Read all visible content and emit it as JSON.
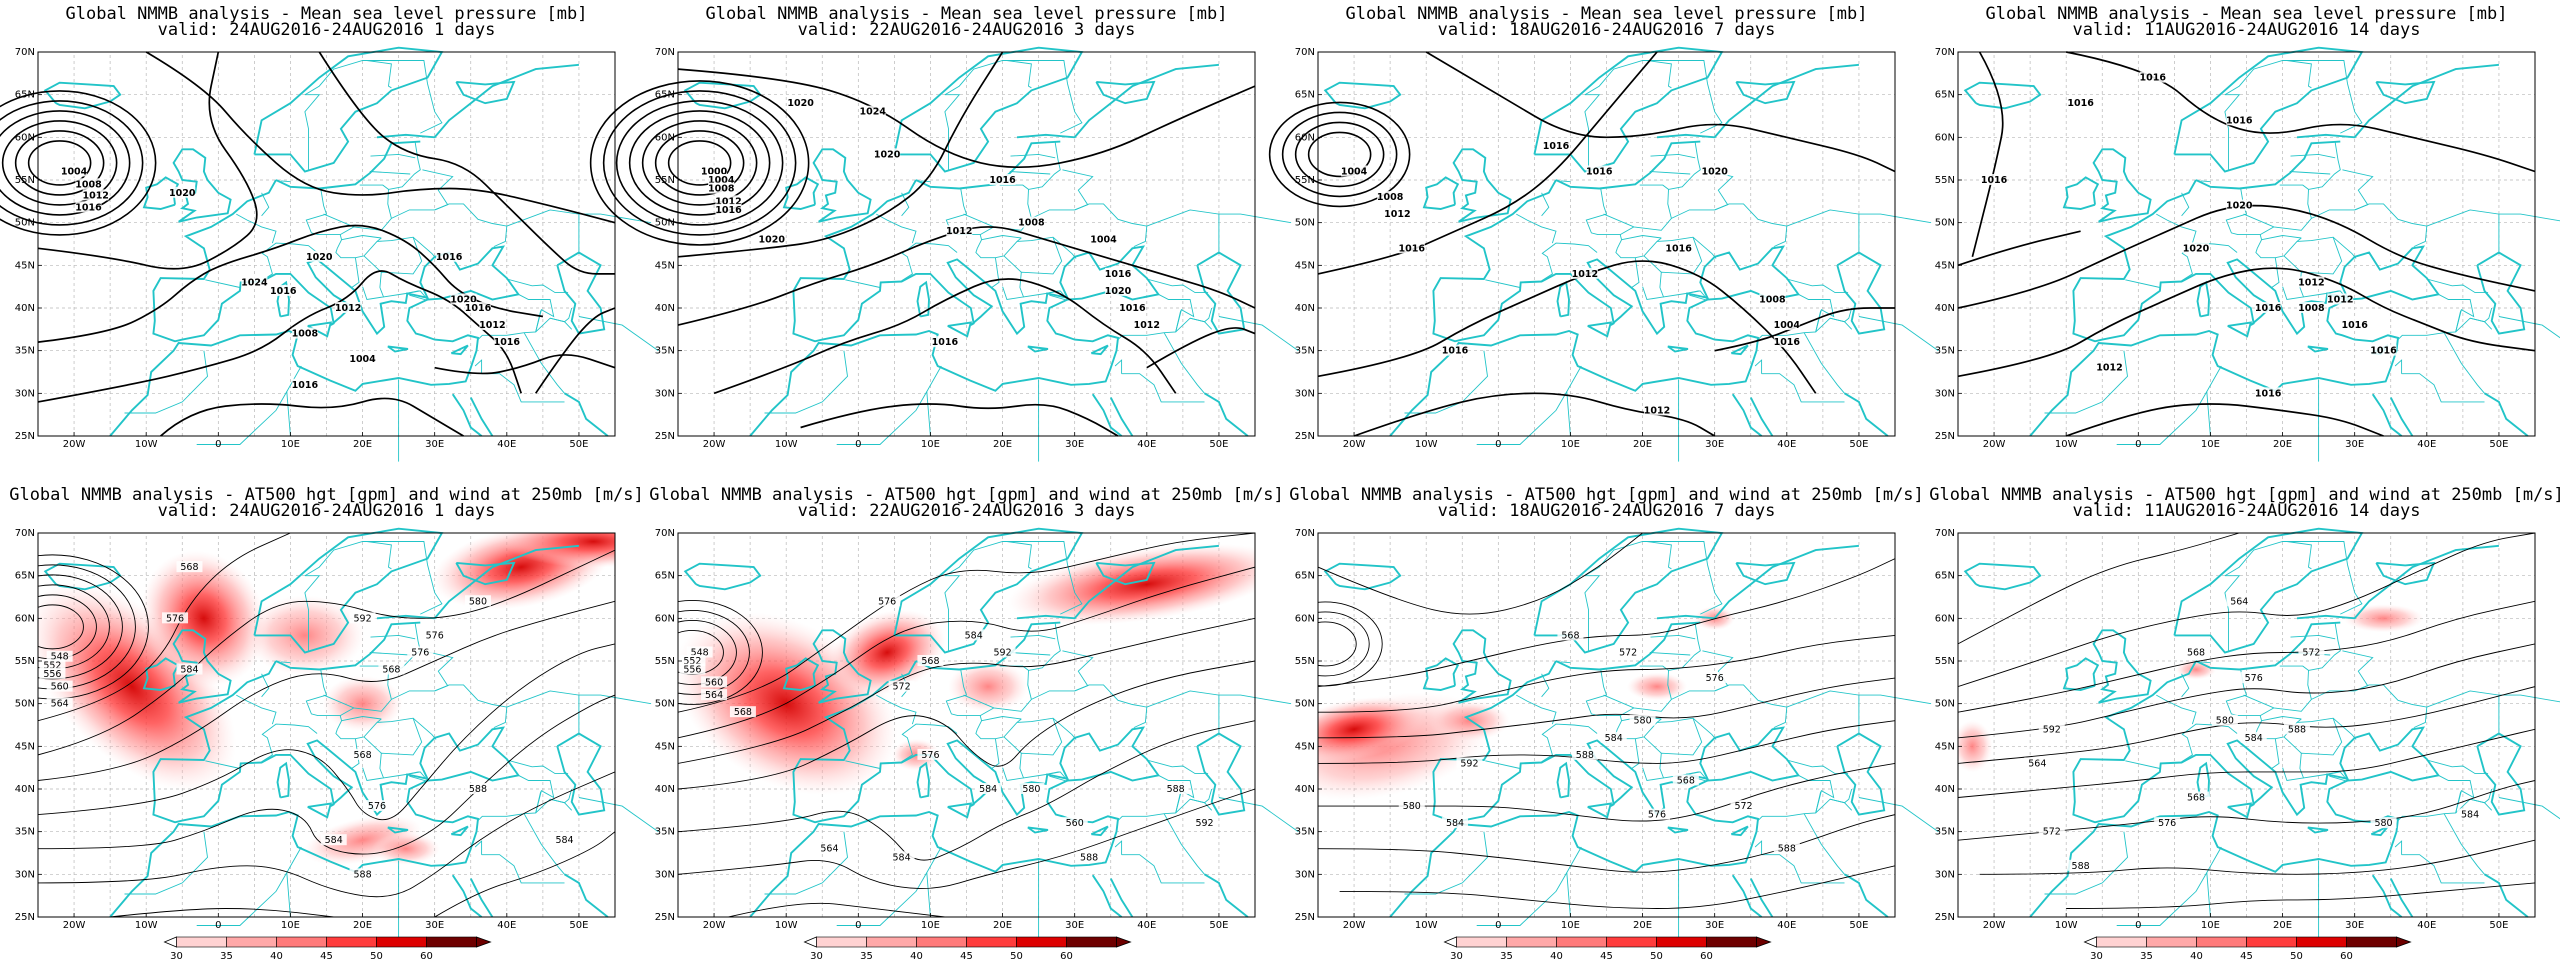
{
  "colors": {
    "coast": "#22c4c8",
    "border": "#22c4c8",
    "grid": "#b8b8b8",
    "contour": "#000000",
    "wind_ramp": [
      "#ffffff",
      "#ffd2d2",
      "#ffa8a8",
      "#ff7a7a",
      "#ff3c3c",
      "#dd0000",
      "#6e0000"
    ]
  },
  "axes": {
    "lat_ticks": [
      "70N",
      "65N",
      "60N",
      "55N",
      "50N",
      "45N",
      "40N",
      "35N",
      "30N",
      "25N"
    ],
    "lon_ticks": [
      "20W",
      "10W",
      "0",
      "10E",
      "20E",
      "30E",
      "40E",
      "50E"
    ]
  },
  "colorbar": {
    "labels": [
      "30",
      "35",
      "40",
      "45",
      "50",
      "60"
    ]
  },
  "top_row": [
    {
      "title_line1": "Global NMMB analysis - Mean sea level pressure [mb]",
      "title_line2": "valid: 24AUG2016-24AUG2016   1 days",
      "contour_labels": [
        "1004",
        "1008",
        "1012",
        "1016",
        "1020",
        "1024",
        "1020",
        "1016",
        "1012",
        "1008",
        "1004",
        "1016",
        "1016",
        "1020",
        "1016",
        "1012",
        "1016"
      ]
    },
    {
      "title_line1": "Global NMMB analysis - Mean sea level pressure [mb]",
      "title_line2": "valid: 22AUG2016-24AUG2016   3 days",
      "contour_labels": [
        "1000",
        "1004",
        "1008",
        "1012",
        "1016",
        "1020",
        "1020",
        "1024",
        "1020",
        "1016",
        "1012",
        "1008",
        "1004",
        "1016",
        "1020",
        "1016",
        "1012",
        "1016"
      ]
    },
    {
      "title_line1": "Global NMMB analysis - Mean sea level pressure [mb]",
      "title_line2": "valid: 18AUG2016-24AUG2016   7 days",
      "contour_labels": [
        "1004",
        "1008",
        "1012",
        "1016",
        "1016",
        "1016",
        "1020",
        "1016",
        "1012",
        "1008",
        "1004",
        "1016",
        "1016",
        "1012"
      ]
    },
    {
      "title_line1": "Global NMMB analysis - Mean sea level pressure [mb]",
      "title_line2": "valid: 11AUG2016-24AUG2016  14 days",
      "contour_labels": [
        "1016",
        "1016",
        "1016",
        "1016",
        "1020",
        "1020",
        "1016",
        "1012",
        "1008",
        "1012",
        "1016",
        "1016",
        "1012",
        "1016"
      ]
    }
  ],
  "bottom_row": [
    {
      "title_line1": "Global NMMB analysis - AT500 hgt [gpm] and wind at 250mb [m/s]",
      "title_line2": "valid: 24AUG2016-24AUG2016   1 days",
      "contour_labels": [
        "548",
        "552",
        "556",
        "560",
        "564",
        "568",
        "576",
        "584",
        "592",
        "568",
        "576",
        "580",
        "576",
        "568",
        "576",
        "584",
        "588",
        "588",
        "584"
      ]
    },
    {
      "title_line1": "Global NMMB analysis - AT500 hgt [gpm] and wind at 250mb [m/s]",
      "title_line2": "valid: 22AUG2016-24AUG2016   3 days",
      "contour_labels": [
        "548",
        "552",
        "556",
        "560",
        "564",
        "568",
        "576",
        "584",
        "592",
        "568",
        "572",
        "576",
        "584",
        "580",
        "560",
        "564",
        "584",
        "588",
        "588",
        "592"
      ]
    },
    {
      "title_line1": "Global NMMB analysis - AT500 hgt [gpm] and wind at 250mb [m/s]",
      "title_line2": "valid: 18AUG2016-24AUG2016   7 days",
      "contour_labels": [
        "568",
        "572",
        "576",
        "580",
        "584",
        "588",
        "592",
        "568",
        "572",
        "576",
        "580",
        "584",
        "588"
      ]
    },
    {
      "title_line1": "Global NMMB analysis - AT500 hgt [gpm] and wind at 250mb [m/s]",
      "title_line2": "valid: 11AUG2016-24AUG2016  14 days",
      "contour_labels": [
        "564",
        "568",
        "572",
        "576",
        "580",
        "584",
        "588",
        "592",
        "564",
        "568",
        "572",
        "576",
        "580",
        "584",
        "588"
      ]
    }
  ]
}
